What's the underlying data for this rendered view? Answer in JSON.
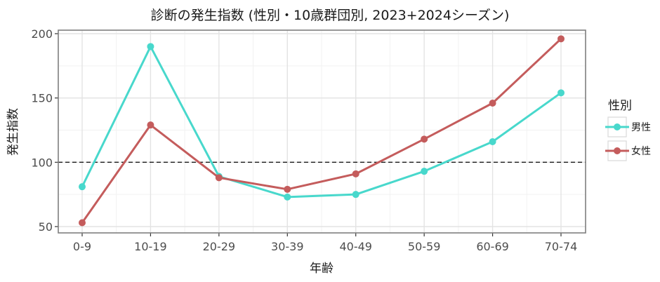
{
  "chart_data": {
    "type": "line",
    "title": "診断の発生指数 (性別・10歳群団別, 2023+2024シーズン)",
    "xlabel": "年齢",
    "ylabel": "発生指数",
    "categories": [
      "0-9",
      "10-19",
      "20-29",
      "30-39",
      "40-49",
      "50-59",
      "60-69",
      "70-74"
    ],
    "series": [
      {
        "name": "男性",
        "color": "#48d8cc",
        "values": [
          81,
          190,
          89,
          73,
          75,
          93,
          116,
          154
        ]
      },
      {
        "name": "女性",
        "color": "#c45c5c",
        "values": [
          53,
          129,
          88,
          79,
          91,
          118,
          146,
          196
        ]
      }
    ],
    "ylim": [
      47,
      202
    ],
    "yticks": [
      50,
      100,
      150,
      200
    ],
    "reference_line": {
      "y": 100,
      "style": "dashed",
      "color": "#1a1a1a"
    },
    "grid": true,
    "legend": {
      "title": "性別",
      "position": "right"
    }
  }
}
